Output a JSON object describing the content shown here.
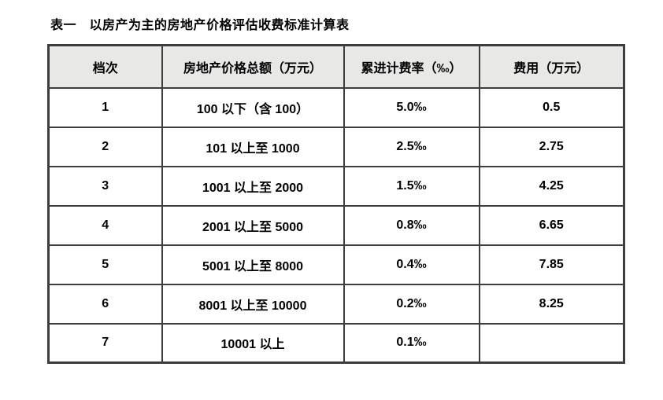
{
  "page": {
    "title": "表一　以房产为主的房地产价格评估收费标准计算表"
  },
  "table": {
    "headers": [
      "档次",
      "房地产价格总额（万元）",
      "累进计费率（‰）",
      "费用（万元）"
    ],
    "rows": [
      [
        "1",
        "100 以下（含 100）",
        "5.0‰",
        "0.5"
      ],
      [
        "2",
        "101 以上至 1000",
        "2.5‰",
        "2.75"
      ],
      [
        "3",
        "1001 以上至 2000",
        "1.5‰",
        "4.25"
      ],
      [
        "4",
        "2001 以上至 5000",
        "0.8‰",
        "6.65"
      ],
      [
        "5",
        "5001 以上至 8000",
        "0.4‰",
        "7.85"
      ],
      [
        "6",
        "8001 以上至 10000",
        "0.2‰",
        "8.25"
      ],
      [
        "7",
        "10001 以上",
        "0.1‰",
        ""
      ]
    ],
    "colors": {
      "border": "#3d3d3d",
      "header_bg": "#e8e8e6",
      "cell_bg": "#ffffff",
      "text": "#000000"
    }
  }
}
